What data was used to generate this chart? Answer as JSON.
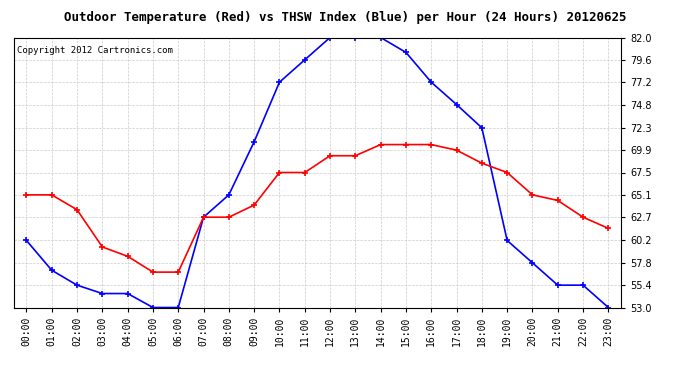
{
  "title": "Outdoor Temperature (Red) vs THSW Index (Blue) per Hour (24 Hours) 20120625",
  "copyright": "Copyright 2012 Cartronics.com",
  "hours": [
    "00:00",
    "01:00",
    "02:00",
    "03:00",
    "04:00",
    "05:00",
    "06:00",
    "07:00",
    "08:00",
    "09:00",
    "10:00",
    "11:00",
    "12:00",
    "13:00",
    "14:00",
    "15:00",
    "16:00",
    "17:00",
    "18:00",
    "19:00",
    "20:00",
    "21:00",
    "22:00",
    "23:00"
  ],
  "temp_red": [
    65.1,
    65.1,
    63.5,
    59.5,
    58.5,
    56.8,
    56.8,
    62.7,
    62.7,
    64.0,
    67.5,
    67.5,
    69.3,
    69.3,
    70.5,
    70.5,
    70.5,
    69.9,
    68.5,
    67.5,
    65.1,
    64.5,
    62.7,
    61.5
  ],
  "thsw_blue": [
    60.2,
    57.0,
    55.4,
    54.5,
    54.5,
    53.0,
    53.0,
    62.7,
    65.1,
    70.8,
    77.2,
    79.6,
    82.0,
    82.0,
    82.0,
    80.4,
    77.2,
    74.8,
    72.3,
    60.2,
    57.8,
    55.4,
    55.4,
    53.0
  ],
  "ylim_min": 53.0,
  "ylim_max": 82.0,
  "yticks": [
    53.0,
    55.4,
    57.8,
    60.2,
    62.7,
    65.1,
    67.5,
    69.9,
    72.3,
    74.8,
    77.2,
    79.6,
    82.0
  ],
  "background_color": "#ffffff",
  "plot_bg_color": "#ffffff",
  "grid_color": "#cccccc",
  "red_color": "#ff0000",
  "blue_color": "#0000ff",
  "title_fontsize": 9,
  "tick_fontsize": 7,
  "copyright_fontsize": 6.5,
  "marker_size": 5,
  "marker_style": "+"
}
